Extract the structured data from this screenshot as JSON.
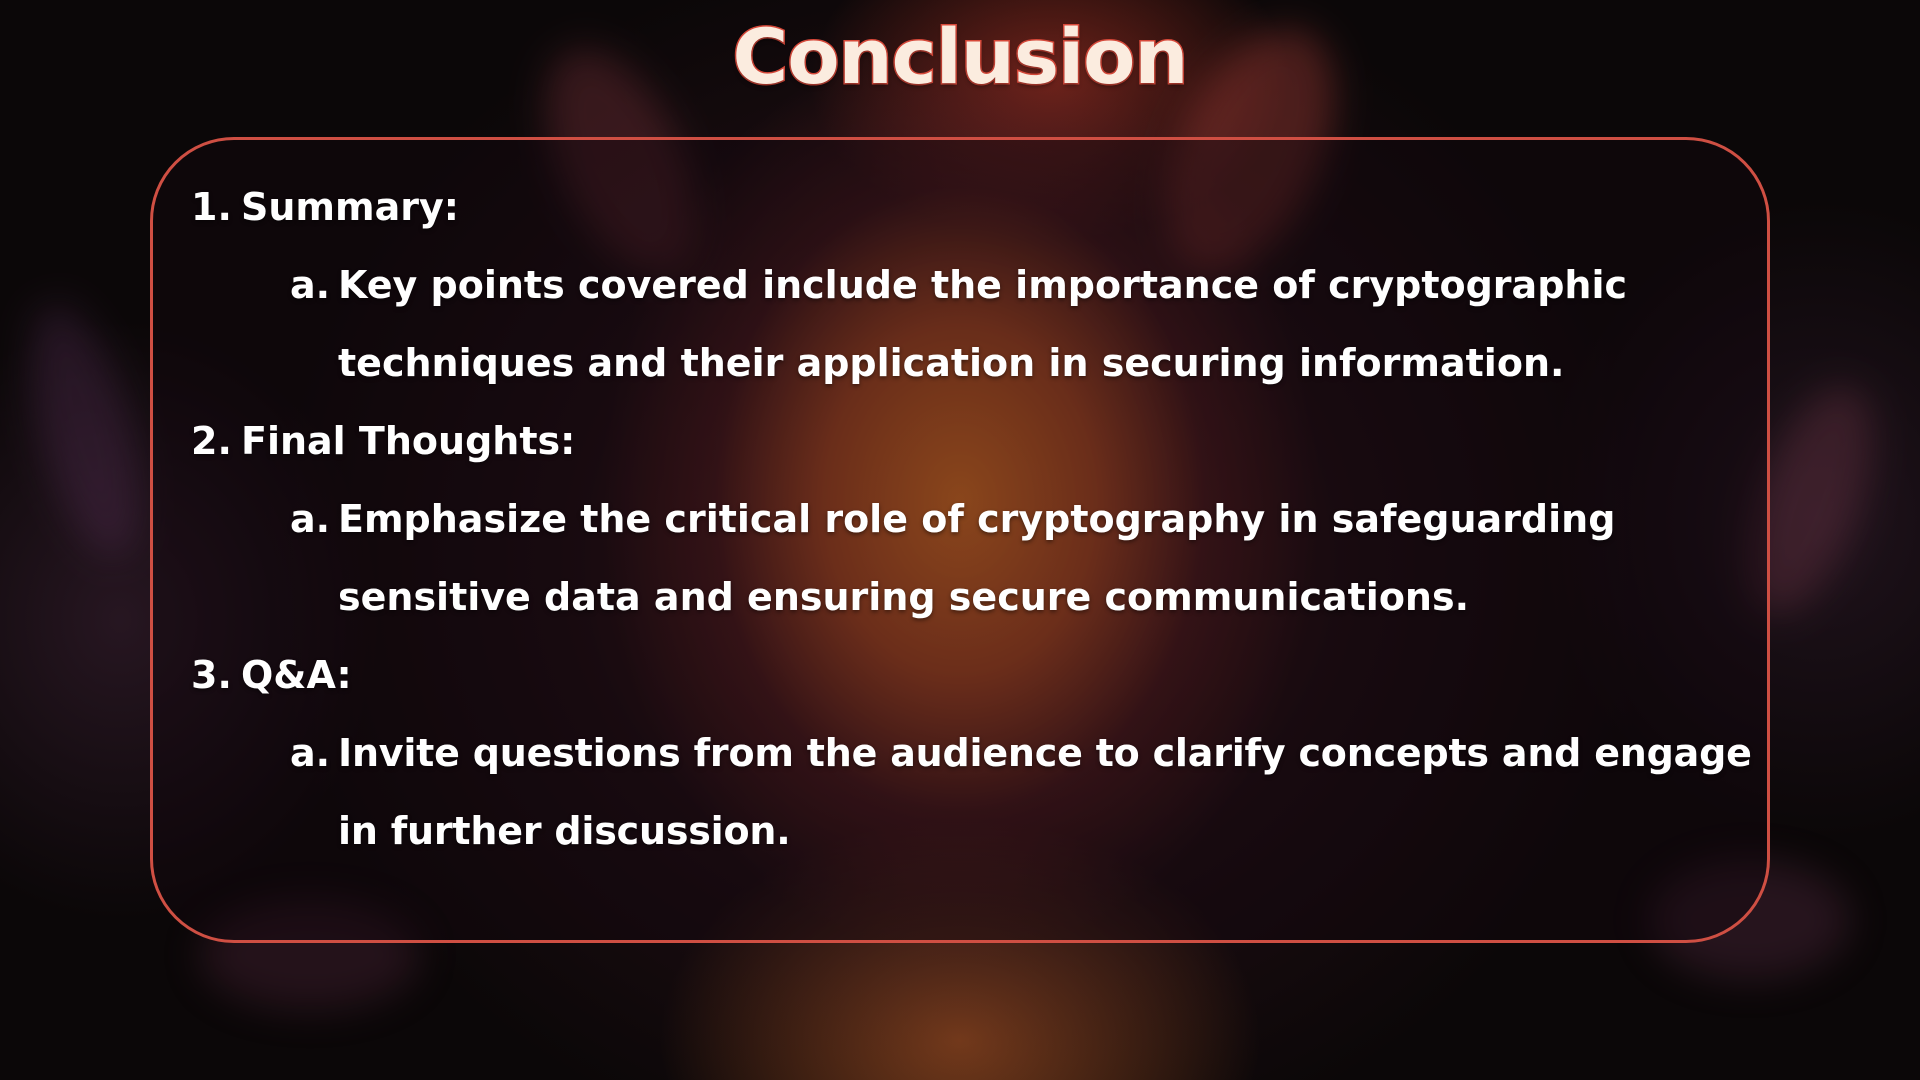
{
  "slide": {
    "title": "Conclusion",
    "items": [
      {
        "number": "1.",
        "heading": "Summary:",
        "sub": {
          "letter": "a.",
          "text": "Key points covered include the importance of cryptographic techniques and their application in securing information."
        }
      },
      {
        "number": "2.",
        "heading": "Final Thoughts:",
        "sub": {
          "letter": "a.",
          "text": "Emphasize the critical role of cryptography in safeguarding sensitive data and ensuring secure communications."
        }
      },
      {
        "number": "3.",
        "heading": "Q&A:",
        "sub": {
          "letter": "a.",
          "text": "Invite questions from the audience to clarify concepts and engage in further discussion."
        }
      }
    ]
  },
  "colors": {
    "title_fill": "#fbecdf",
    "title_outline": "#d9493a",
    "panel_border": "#cf4f43",
    "glow_center": "#e77826",
    "text": "#ffffff"
  }
}
